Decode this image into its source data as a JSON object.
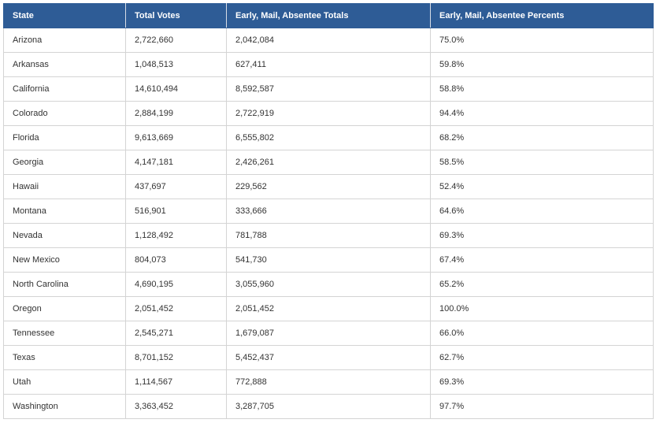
{
  "table": {
    "headers": [
      "State",
      "Total Votes",
      "Early, Mail, Absentee Totals",
      "Early, Mail, Absentee Percents"
    ],
    "rows": [
      [
        "Arizona",
        "2,722,660",
        "2,042,084",
        "75.0%"
      ],
      [
        "Arkansas",
        "1,048,513",
        "627,411",
        "59.8%"
      ],
      [
        "California",
        "14,610,494",
        "8,592,587",
        "58.8%"
      ],
      [
        "Colorado",
        "2,884,199",
        "2,722,919",
        "94.4%"
      ],
      [
        "Florida",
        "9,613,669",
        "6,555,802",
        "68.2%"
      ],
      [
        "Georgia",
        "4,147,181",
        "2,426,261",
        "58.5%"
      ],
      [
        "Hawaii",
        "437,697",
        "229,562",
        "52.4%"
      ],
      [
        "Montana",
        "516,901",
        "333,666",
        "64.6%"
      ],
      [
        "Nevada",
        "1,128,492",
        "781,788",
        "69.3%"
      ],
      [
        "New Mexico",
        "804,073",
        "541,730",
        "67.4%"
      ],
      [
        "North Carolina",
        "4,690,195",
        "3,055,960",
        "65.2%"
      ],
      [
        "Oregon",
        "2,051,452",
        "2,051,452",
        "100.0%"
      ],
      [
        "Tennessee",
        "2,545,271",
        "1,679,087",
        "66.0%"
      ],
      [
        "Texas",
        "8,701,152",
        "5,452,437",
        "62.7%"
      ],
      [
        "Utah",
        "1,114,567",
        "772,888",
        "69.3%"
      ],
      [
        "Washington",
        "3,363,452",
        "3,287,705",
        "97.7%"
      ]
    ]
  },
  "colors": {
    "header_bg": "#2e5c96",
    "header_text": "#ffffff",
    "cell_border": "#d4d4d4",
    "cell_text": "#333333"
  }
}
